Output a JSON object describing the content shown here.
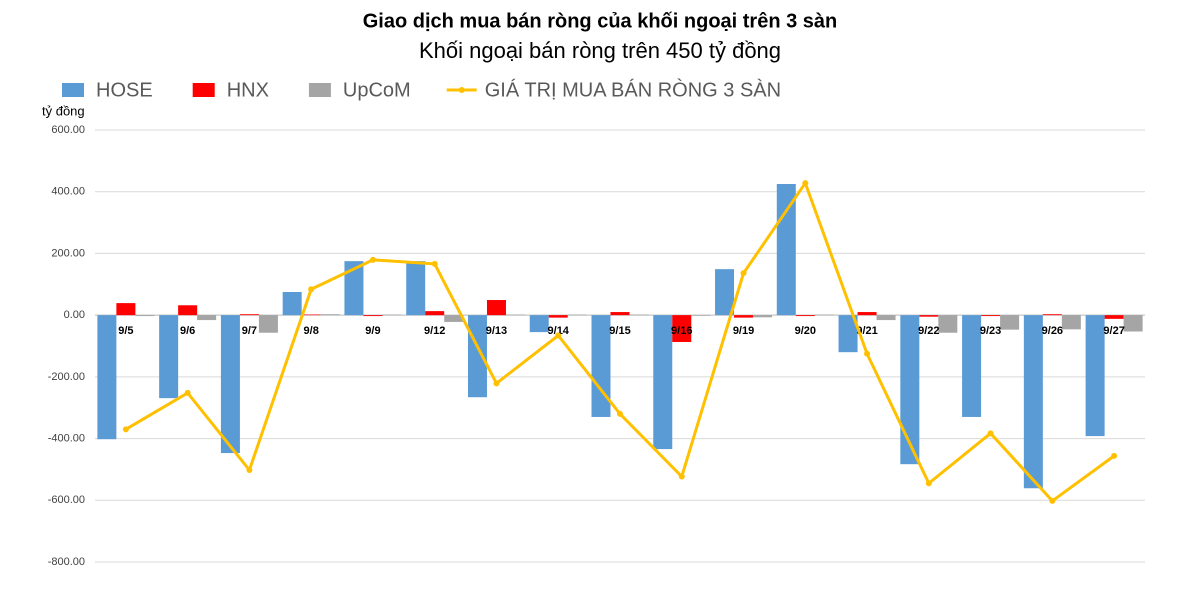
{
  "chart_data": {
    "type": "bar",
    "title": "Giao dịch mua bán ròng của khối ngoại trên 3 sàn",
    "subtitle": "Khối ngoại bán ròng trên 450 tỷ đồng",
    "y_label": "tỷ đồng",
    "categories": [
      "9/5",
      "9/6",
      "9/7",
      "9/8",
      "9/9",
      "9/12",
      "9/13",
      "9/14",
      "9/15",
      "9/16",
      "9/19",
      "9/20",
      "9/21",
      "9/22",
      "9/23",
      "9/26",
      "9/27"
    ],
    "series": [
      {
        "name": "HOSE",
        "type": "bar",
        "color": "#5b9bd5",
        "values": [
          -402,
          -269,
          -447,
          75,
          175,
          175,
          -266,
          -55,
          -330,
          -434,
          149,
          425,
          -120,
          -483,
          -330,
          -561,
          -392
        ]
      },
      {
        "name": "HNX",
        "type": "bar",
        "color": "#ff0000",
        "values": [
          39,
          32,
          3,
          2,
          -3,
          13,
          49,
          -8,
          10,
          -87,
          -8,
          -3,
          10,
          -5,
          -3,
          3,
          -12
        ]
      },
      {
        "name": "UpCoM",
        "type": "bar",
        "color": "#a5a5a5",
        "values": [
          -3,
          -16,
          -57,
          3,
          2,
          -22,
          2,
          2,
          2,
          -2,
          -7,
          2,
          -16,
          -57,
          -47,
          -46,
          -53
        ]
      },
      {
        "name": "GIÁ TRỊ MUA BÁN RÒNG 3 SÀN",
        "type": "line",
        "color": "#ffc000",
        "values": [
          -370,
          -252,
          -502,
          84,
          179,
          166,
          -221,
          -66,
          -320,
          -523,
          136,
          428,
          -125,
          -545,
          -383,
          -602,
          -456
        ]
      }
    ],
    "ylim": [
      -800,
      600
    ],
    "yticks": [
      {
        "value": -800,
        "label": "-800.00"
      },
      {
        "value": -600,
        "label": "-600.00"
      },
      {
        "value": -400,
        "label": "-400.00"
      },
      {
        "value": -200,
        "label": "-200.00"
      },
      {
        "value": 0,
        "label": "0.00"
      },
      {
        "value": 200,
        "label": "200.00"
      },
      {
        "value": 400,
        "label": "400.00"
      },
      {
        "value": 600,
        "label": "600.00"
      }
    ],
    "grid": true,
    "legend": "top"
  }
}
